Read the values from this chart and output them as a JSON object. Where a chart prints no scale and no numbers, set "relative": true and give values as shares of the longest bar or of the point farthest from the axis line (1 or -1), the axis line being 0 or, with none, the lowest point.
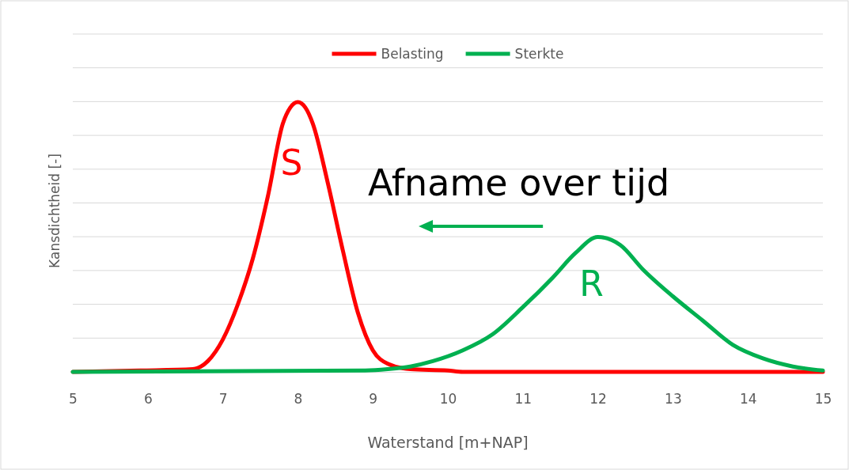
{
  "chart_data": {
    "type": "line",
    "relative": true,
    "xlabel": "Waterstand [m+NAP]",
    "ylabel": "Kansdichtheid [-]",
    "xlim": [
      5,
      15
    ],
    "xticks": [
      5,
      6,
      7,
      8,
      9,
      10,
      11,
      12,
      13,
      14,
      15
    ],
    "grid": "y",
    "legend": "top",
    "line_style": "solid",
    "marker": "none",
    "series": [
      {
        "name": "Belasting",
        "color": "#ff0000",
        "x": [
          5,
          5.9,
          6.6,
          6.8,
          7.0,
          7.2,
          7.4,
          7.6,
          7.8,
          7.9,
          8.0,
          8.1,
          8.2,
          8.4,
          8.6,
          8.8,
          9.0,
          9.2,
          9.5,
          10,
          10.2,
          15
        ],
        "values": [
          0,
          0.005,
          0.01,
          0.04,
          0.12,
          0.25,
          0.42,
          0.65,
          0.92,
          0.98,
          1.0,
          0.98,
          0.92,
          0.7,
          0.45,
          0.22,
          0.08,
          0.03,
          0.01,
          0.005,
          0,
          0
        ]
      },
      {
        "name": "Sterkte",
        "color": "#00b050",
        "x": [
          5,
          8.9,
          9.2,
          9.5,
          9.8,
          10.2,
          10.6,
          11.0,
          11.4,
          11.7,
          12.0,
          12.3,
          12.6,
          13.0,
          13.4,
          13.8,
          14.2,
          14.6,
          15
        ],
        "values": [
          0,
          0.005,
          0.01,
          0.02,
          0.04,
          0.08,
          0.14,
          0.24,
          0.35,
          0.44,
          0.5,
          0.47,
          0.38,
          0.28,
          0.19,
          0.1,
          0.05,
          0.02,
          0.005
        ]
      }
    ],
    "annotations": [
      "S",
      "R",
      "Afname over tijd"
    ]
  }
}
